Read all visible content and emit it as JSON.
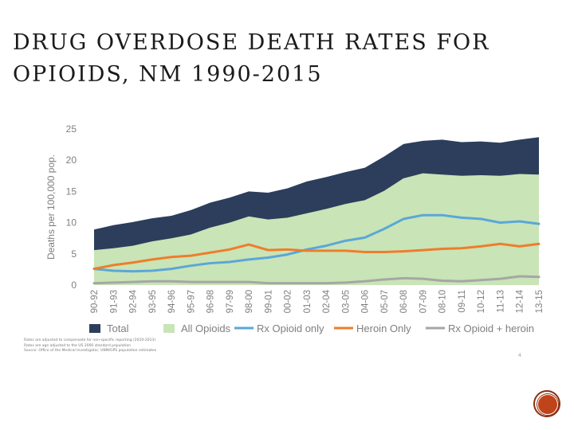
{
  "slide": {
    "title_line1": "DRUG OVERDOSE DEATH RATES FOR",
    "title_line2": "OPIOIDS, NM 1990-2015",
    "notes": [
      "Rates are adjusted to compensate for non-specific reporting (2010-2013)",
      "Rates are age adjusted to the US 2000 standard population",
      "Source: Office of the Medical Investigator, UNM/GPS population estimates"
    ],
    "page_number": "4"
  },
  "chart_data": {
    "type": "area",
    "ylabel": "Deaths per 100,000 pop.",
    "xlabel": "",
    "ylim": [
      0,
      25
    ],
    "yticks": [
      0,
      5,
      10,
      15,
      20,
      25
    ],
    "grid": false,
    "legend_position": "bottom",
    "categories": [
      "90-92",
      "91-93",
      "92-94",
      "93-95",
      "94-96",
      "95-97",
      "96-98",
      "97-99",
      "98-00",
      "99-01",
      "00-02",
      "01-03",
      "02-04",
      "03-05",
      "04-06",
      "05-07",
      "06-08",
      "07-09",
      "08-10",
      "09-11",
      "10-12",
      "11-13",
      "12-14",
      "13-15"
    ],
    "series": [
      {
        "name": "Total",
        "kind": "area",
        "color": "#2c3e5c",
        "values": [
          8.9,
          9.6,
          10.1,
          10.7,
          11.1,
          12.0,
          13.2,
          14.0,
          15.0,
          14.8,
          15.5,
          16.6,
          17.3,
          18.1,
          18.8,
          20.6,
          22.6,
          23.1,
          23.3,
          22.9,
          23.0,
          22.8,
          23.3,
          23.7
        ]
      },
      {
        "name": "All Opioids",
        "kind": "area",
        "color": "#c9e4b6",
        "values": [
          5.6,
          5.9,
          6.3,
          7.0,
          7.5,
          8.1,
          9.2,
          10.0,
          11.0,
          10.5,
          10.8,
          11.5,
          12.2,
          13.0,
          13.6,
          15.1,
          17.1,
          17.9,
          17.7,
          17.5,
          17.6,
          17.5,
          17.8,
          17.7
        ]
      },
      {
        "name": "Rx Opioid only",
        "kind": "line",
        "color": "#5aa7d8",
        "values": [
          2.6,
          2.3,
          2.2,
          2.3,
          2.6,
          3.1,
          3.5,
          3.7,
          4.1,
          4.4,
          4.9,
          5.7,
          6.3,
          7.1,
          7.6,
          9.0,
          10.6,
          11.2,
          11.2,
          10.8,
          10.6,
          10.0,
          10.2,
          9.8
        ]
      },
      {
        "name": "Heroin Only",
        "kind": "line",
        "color": "#ee7d2b",
        "values": [
          2.6,
          3.2,
          3.6,
          4.1,
          4.5,
          4.7,
          5.2,
          5.7,
          6.5,
          5.6,
          5.7,
          5.5,
          5.5,
          5.5,
          5.3,
          5.3,
          5.4,
          5.6,
          5.8,
          5.9,
          6.2,
          6.6,
          6.2,
          6.6
        ]
      },
      {
        "name": "Rx Opioid + heroin",
        "kind": "line",
        "color": "#a6a6a6",
        "values": [
          0.3,
          0.4,
          0.5,
          0.6,
          0.6,
          0.5,
          0.5,
          0.5,
          0.5,
          0.3,
          0.3,
          0.3,
          0.3,
          0.4,
          0.6,
          0.9,
          1.1,
          1.0,
          0.7,
          0.6,
          0.8,
          1.0,
          1.4,
          1.3
        ]
      }
    ]
  },
  "icons": {
    "corner": "circle-button-icon"
  },
  "colors": {
    "axis_text": "#7f7f7f",
    "background": "#ffffff",
    "corner_outer": "#8b2e10",
    "corner_inner": "#c0431a"
  }
}
